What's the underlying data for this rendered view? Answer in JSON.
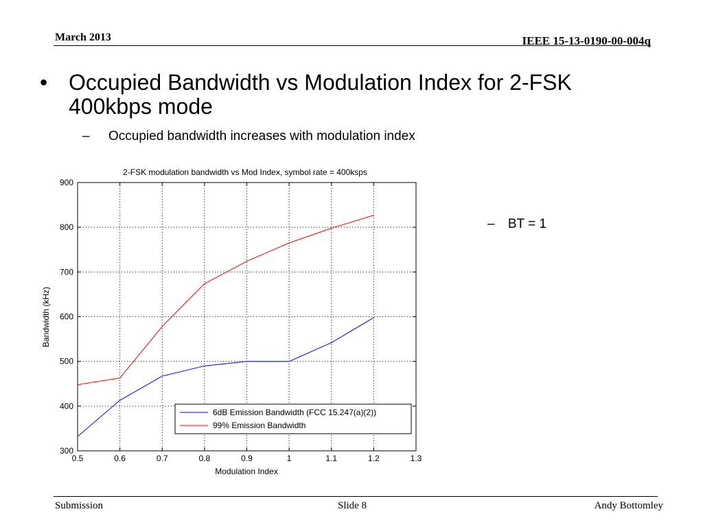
{
  "header": {
    "date": "March 2013",
    "doc_id": "IEEE 15-13-0190-00-004q"
  },
  "slide": {
    "bullet_symbol": "•",
    "dash_symbol": "–",
    "main_bullet": "Occupied Bandwidth vs Modulation Index for 2-FSK 400kbps mode",
    "sub_bullet": "Occupied bandwidth increases with modulation index",
    "side_bullet": "BT = 1"
  },
  "chart_data": {
    "type": "line",
    "title": "2-FSK modulation bandwidth vs Mod Index, symbol rate = 400ksps",
    "xlabel": "Modulation Index",
    "ylabel": "Bandwidth (kHz)",
    "xlim": [
      0.5,
      1.3
    ],
    "ylim": [
      300,
      900
    ],
    "xticks": [
      0.5,
      0.6,
      0.7,
      0.8,
      0.9,
      1,
      1.1,
      1.2,
      1.3
    ],
    "xtick_labels": [
      "0.5",
      "0.6",
      "0.7",
      "0.8",
      "0.9",
      "1",
      "1.1",
      "1.2",
      "1.3"
    ],
    "yticks": [
      300,
      400,
      500,
      600,
      700,
      800,
      900
    ],
    "ytick_labels": [
      "300",
      "400",
      "500",
      "600",
      "700",
      "800",
      "900"
    ],
    "grid": true,
    "legend_position": "bottom-right",
    "x": [
      0.5,
      0.6,
      0.7,
      0.8,
      0.9,
      1.0,
      1.1,
      1.2
    ],
    "series": [
      {
        "name": "6dB Emission Bandwidth (FCC 15.247(a)(2))",
        "color": "#0000ff",
        "values": [
          332,
          413,
          467,
          490,
          500,
          500,
          542,
          598
        ]
      },
      {
        "name": "99% Emission Bandwidth",
        "color": "#ff0000",
        "values": [
          448,
          463,
          578,
          674,
          724,
          765,
          798,
          827
        ]
      }
    ]
  },
  "footer": {
    "left": "Submission",
    "center": "Slide 8",
    "right": "Andy Bottomley"
  }
}
